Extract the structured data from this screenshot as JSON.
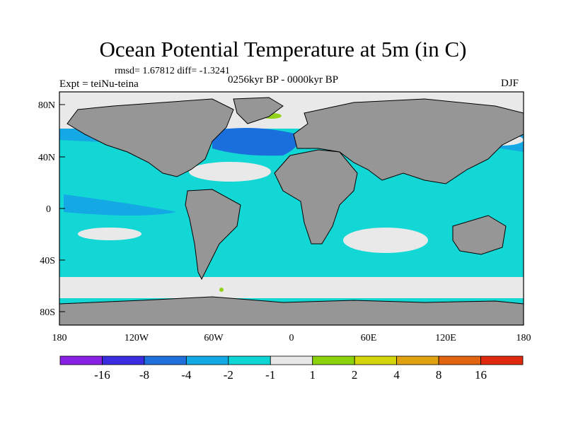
{
  "title": "Ocean Potential Temperature at 5m (in C)",
  "stats": "rmsd= 1.67812 diff= -1.3241",
  "experiment": "Expt = teiNu-teina",
  "period": "0256kyr BP - 0000kyr BP",
  "season": "DJF",
  "lat_labels": [
    "80N",
    "40N",
    "0",
    "40S",
    "80S"
  ],
  "lon_labels": [
    "180",
    "120W",
    "60W",
    "0",
    "60E",
    "120E",
    "180"
  ],
  "colorbar": {
    "labels": [
      "-16",
      "-8",
      "-4",
      "-2",
      "-1",
      "1",
      "2",
      "4",
      "8",
      "16"
    ],
    "colors": [
      "#8a1fe6",
      "#3a2de0",
      "#1f6fdc",
      "#12a9e4",
      "#0fd6d6",
      "#e8e8e8",
      "#8cd20a",
      "#d4d40a",
      "#e0a210",
      "#e06410",
      "#e02a10"
    ]
  },
  "colors": {
    "land": "#969696",
    "ocean_main": "#13d7d5",
    "ocean_cool": "#14a8e4",
    "ocean_cold": "#1a6fdc",
    "neutral": "#e9e9e9",
    "warm": "#92d21a"
  }
}
